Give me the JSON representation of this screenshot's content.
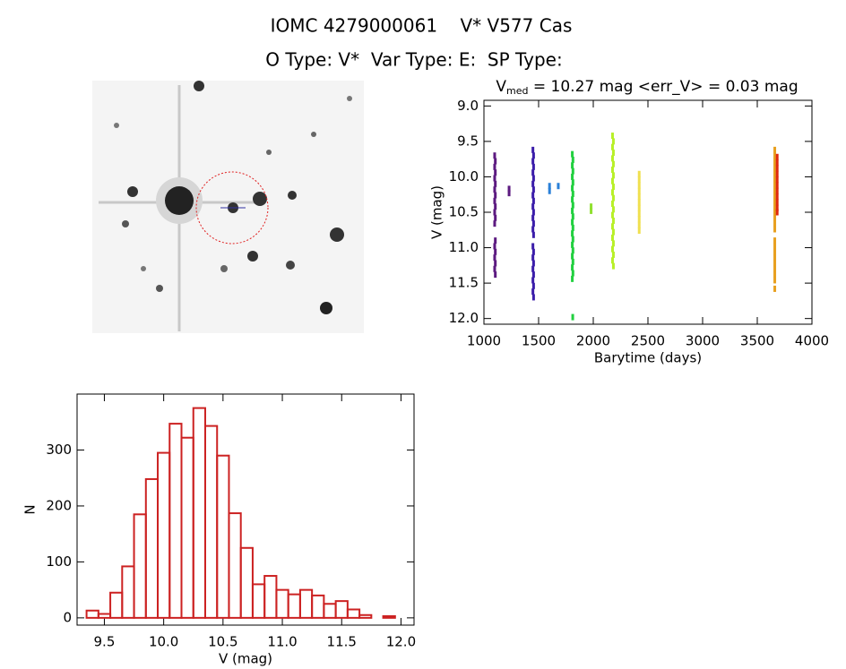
{
  "header": {
    "title": "IOMC 4279000061    V* V577 Cas",
    "subtitle": "O Type: V*  Var Type: E:  SP Type:"
  },
  "chart_data": [
    {
      "type": "scatter",
      "title": {
        "main": "V",
        "sub": "med",
        "rest": " = 10.27 mag <err_V> = 0.03 mag"
      },
      "x_label": "Barytime (days)",
      "y_label": "V (mag)",
      "xlim": [
        1000,
        4000
      ],
      "xticks": [
        1000,
        1500,
        2000,
        2500,
        3000,
        3500,
        4000
      ],
      "ylim": [
        12.08,
        8.92
      ],
      "yticks": [
        {
          "value": 9,
          "label": "9.0"
        },
        9.5,
        {
          "value": 10,
          "label": "10.0"
        },
        10.5,
        {
          "value": 11,
          "label": "11.0"
        },
        11.5,
        {
          "value": 12,
          "label": "12.0"
        }
      ],
      "series": [
        {
          "color": "#5c1a80",
          "x": [
            1098,
            1104,
            1098,
            1104,
            1098,
            1104,
            1098,
            1104,
            1098,
            1104,
            1098,
            1104,
            1098,
            1104,
            1098,
            1104,
            1098,
            1104,
            1098,
            1104,
            1230,
            1230
          ],
          "y": [
            9.7,
            9.78,
            9.86,
            9.94,
            10.02,
            10.1,
            10.18,
            10.26,
            10.34,
            10.42,
            10.5,
            10.58,
            10.66,
            10.9,
            10.98,
            11.06,
            11.14,
            11.22,
            11.3,
            11.38,
            10.17,
            10.23
          ]
        },
        {
          "color": "#3c1eaa",
          "x": [
            1448,
            1454,
            1448,
            1454,
            1448,
            1454,
            1448,
            1454,
            1448,
            1454,
            1448,
            1454,
            1448,
            1454,
            1448,
            1454,
            1448,
            1454,
            1448,
            1454,
            1448,
            1454,
            1448,
            1454,
            1448,
            1454
          ],
          "y": [
            9.62,
            9.7,
            9.78,
            9.86,
            9.94,
            10.02,
            10.1,
            10.18,
            10.26,
            10.34,
            10.42,
            10.5,
            10.58,
            10.66,
            10.74,
            10.82,
            10.98,
            11.06,
            11.14,
            11.22,
            11.3,
            11.38,
            11.46,
            11.54,
            11.62,
            11.7
          ]
        },
        {
          "color": "#2a80d8",
          "x": [
            1600,
            1600,
            1680
          ],
          "y": [
            10.13,
            10.2,
            10.13
          ]
        },
        {
          "color": "#22d040",
          "x": [
            1808,
            1814,
            1808,
            1814,
            1808,
            1814,
            1808,
            1814,
            1808,
            1814,
            1808,
            1814,
            1808,
            1814,
            1808,
            1814,
            1808,
            1814,
            1808,
            1814,
            1808,
            1814,
            1808,
            1812
          ],
          "y": [
            9.68,
            9.76,
            9.84,
            9.92,
            10.0,
            10.08,
            10.16,
            10.24,
            10.32,
            10.4,
            10.48,
            10.56,
            10.64,
            10.72,
            10.8,
            10.88,
            10.96,
            11.04,
            11.12,
            11.2,
            11.28,
            11.36,
            11.44,
            11.98
          ]
        },
        {
          "color": "#90e030",
          "x": [
            1980,
            1980
          ],
          "y": [
            10.42,
            10.48
          ]
        },
        {
          "color": "#b8f028",
          "x": [
            2176,
            2184,
            2176,
            2184,
            2176,
            2184,
            2176,
            2184,
            2176,
            2184,
            2176,
            2184,
            2176,
            2184,
            2176,
            2184,
            2176,
            2184,
            2176,
            2184,
            2176,
            2184,
            2176,
            2184
          ],
          "y": [
            9.42,
            9.5,
            9.58,
            9.66,
            9.74,
            9.82,
            9.9,
            9.98,
            10.06,
            10.14,
            10.22,
            10.3,
            10.38,
            10.46,
            10.54,
            10.62,
            10.7,
            10.78,
            10.86,
            10.94,
            11.02,
            11.1,
            11.18,
            11.26
          ]
        },
        {
          "color": "#f0e050",
          "x": [
            2420,
            2420,
            2420,
            2420,
            2420,
            2420,
            2420,
            2420,
            2420,
            2420,
            2420
          ],
          "y": [
            9.96,
            10.04,
            10.12,
            10.2,
            10.28,
            10.36,
            10.44,
            10.52,
            10.6,
            10.68,
            10.76
          ]
        },
        {
          "color": "#e8a020",
          "x": [
            3660,
            3660,
            3660,
            3660,
            3660,
            3660,
            3660,
            3660,
            3660,
            3660,
            3660,
            3660,
            3660,
            3660,
            3660,
            3660,
            3660,
            3660,
            3660,
            3660,
            3660,
            3660,
            3660,
            3660
          ],
          "y": [
            9.62,
            9.7,
            9.78,
            9.86,
            9.94,
            10.02,
            10.1,
            10.18,
            10.26,
            10.34,
            10.42,
            10.5,
            10.58,
            10.66,
            10.74,
            10.9,
            10.98,
            11.06,
            11.14,
            11.22,
            11.3,
            11.38,
            11.46,
            11.58
          ]
        },
        {
          "color": "#e02810",
          "x": [
            3682,
            3682,
            3682,
            3682,
            3682,
            3682,
            3682,
            3682,
            3682,
            3682,
            3682
          ],
          "y": [
            9.72,
            9.8,
            9.88,
            9.96,
            10.04,
            10.12,
            10.2,
            10.28,
            10.36,
            10.44,
            10.5
          ]
        }
      ]
    },
    {
      "type": "histogram",
      "x_label": "V (mag)",
      "y_label": "N",
      "color": "#cc2222",
      "xlim": [
        9.27,
        12.11
      ],
      "xticks": [
        9.5,
        {
          "value": 10,
          "label": "10.0"
        },
        10.5,
        {
          "value": 11,
          "label": "11.0"
        },
        11.5,
        {
          "value": 12,
          "label": "12.0"
        }
      ],
      "ylim": [
        -13,
        400
      ],
      "yticks": [
        0,
        100,
        200,
        300
      ],
      "bins": [
        9.35,
        9.45,
        9.55,
        9.65,
        9.75,
        9.85,
        9.95,
        10.05,
        10.15,
        10.25,
        10.35,
        10.45,
        10.55,
        10.65,
        10.75,
        10.85,
        10.95,
        11.05,
        11.15,
        11.25,
        11.35,
        11.45,
        11.55,
        11.65,
        11.75,
        11.85,
        11.95
      ],
      "values": [
        13,
        7,
        45,
        92,
        185,
        248,
        295,
        347,
        322,
        375,
        343,
        290,
        187,
        125,
        60,
        75,
        50,
        42,
        50,
        40,
        25,
        30,
        15,
        5,
        0,
        3
      ]
    }
  ]
}
